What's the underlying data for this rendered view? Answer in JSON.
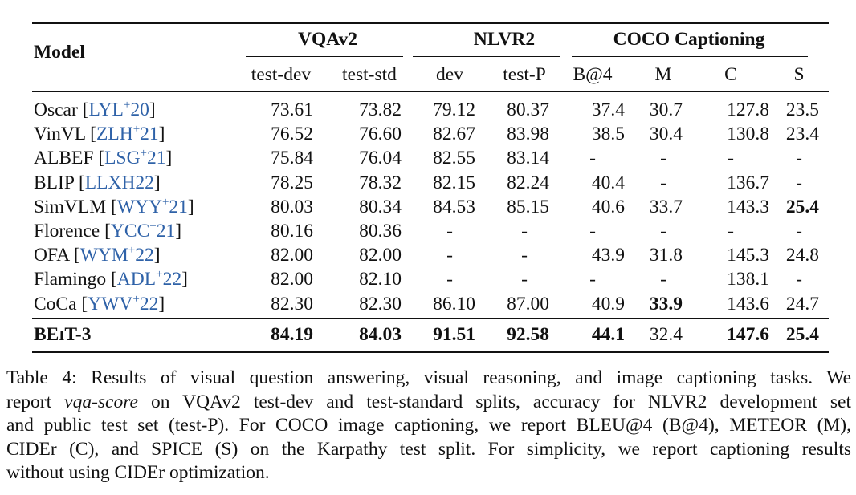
{
  "table": {
    "model_header": "Model",
    "groups": [
      {
        "label": "VQAv2"
      },
      {
        "label": "NLVR2"
      },
      {
        "label": "COCO Captioning"
      }
    ],
    "subheaders": [
      "test-dev",
      "test-std",
      "dev",
      "test-P",
      "B@4",
      "M",
      "C",
      "S"
    ],
    "rows": [
      {
        "model": "Oscar",
        "cite": "LYL",
        "cite_sup": "+",
        "cite_year": "20",
        "values": [
          "73.61",
          "73.82",
          "79.12",
          "80.37",
          "37.4",
          "30.7",
          "127.8",
          "23.5"
        ],
        "bold": []
      },
      {
        "model": "VinVL",
        "cite": "ZLH",
        "cite_sup": "+",
        "cite_year": "21",
        "values": [
          "76.52",
          "76.60",
          "82.67",
          "83.98",
          "38.5",
          "30.4",
          "130.8",
          "23.4"
        ],
        "bold": []
      },
      {
        "model": "ALBEF",
        "cite": "LSG",
        "cite_sup": "+",
        "cite_year": "21",
        "values": [
          "75.84",
          "76.04",
          "82.55",
          "83.14",
          "-",
          "-",
          "-",
          "-"
        ],
        "bold": []
      },
      {
        "model": "BLIP",
        "cite": "LLXH22",
        "cite_sup": "",
        "cite_year": "",
        "values": [
          "78.25",
          "78.32",
          "82.15",
          "82.24",
          "40.4",
          "-",
          "136.7",
          "-"
        ],
        "bold": []
      },
      {
        "model": "SimVLM",
        "cite": "WYY",
        "cite_sup": "+",
        "cite_year": "21",
        "values": [
          "80.03",
          "80.34",
          "84.53",
          "85.15",
          "40.6",
          "33.7",
          "143.3",
          "25.4"
        ],
        "bold": [
          7
        ]
      },
      {
        "model": "Florence",
        "cite": "YCC",
        "cite_sup": "+",
        "cite_year": "21",
        "values": [
          "80.16",
          "80.36",
          "-",
          "-",
          "-",
          "-",
          "-",
          "-"
        ],
        "bold": []
      },
      {
        "model": "OFA",
        "cite": "WYM",
        "cite_sup": "+",
        "cite_year": "22",
        "values": [
          "82.00",
          "82.00",
          "-",
          "-",
          "43.9",
          "31.8",
          "145.3",
          "24.8"
        ],
        "bold": []
      },
      {
        "model": "Flamingo",
        "cite": "ADL",
        "cite_sup": "+",
        "cite_year": "22",
        "values": [
          "82.00",
          "82.10",
          "-",
          "-",
          "-",
          "-",
          "138.1",
          "-"
        ],
        "bold": []
      },
      {
        "model": "CoCa",
        "cite": "YWV",
        "cite_sup": "+",
        "cite_year": "22",
        "values": [
          "82.30",
          "82.30",
          "86.10",
          "87.00",
          "40.9",
          "33.9",
          "143.6",
          "24.7"
        ],
        "bold": [
          5
        ]
      }
    ],
    "final_row": {
      "model_b": "BE",
      "model_sc": "I",
      "model_rest": "T-3",
      "values": [
        "84.19",
        "84.03",
        "91.51",
        "92.58",
        "44.1",
        "32.4",
        "147.6",
        "25.4"
      ],
      "bold": [
        0,
        1,
        2,
        3,
        4,
        6,
        7
      ]
    }
  },
  "caption": {
    "line1": "Table 4: Results of visual question answering, visual reasoning, and image captioning tasks. We",
    "line2_a": "report ",
    "line2_em": "vqa-score",
    "line2_b": " on VQAv2 test-dev and test-standard splits, accuracy for NLVR2 development set",
    "line3": "and public test set (test-P). For COCO image captioning, we report BLEU@4 (B@4), METEOR (M),",
    "line4": "CIDEr (C), and SPICE (S) on the Karpathy test split. For simplicity, we report captioning results",
    "line5": "without using CIDEr optimization."
  }
}
